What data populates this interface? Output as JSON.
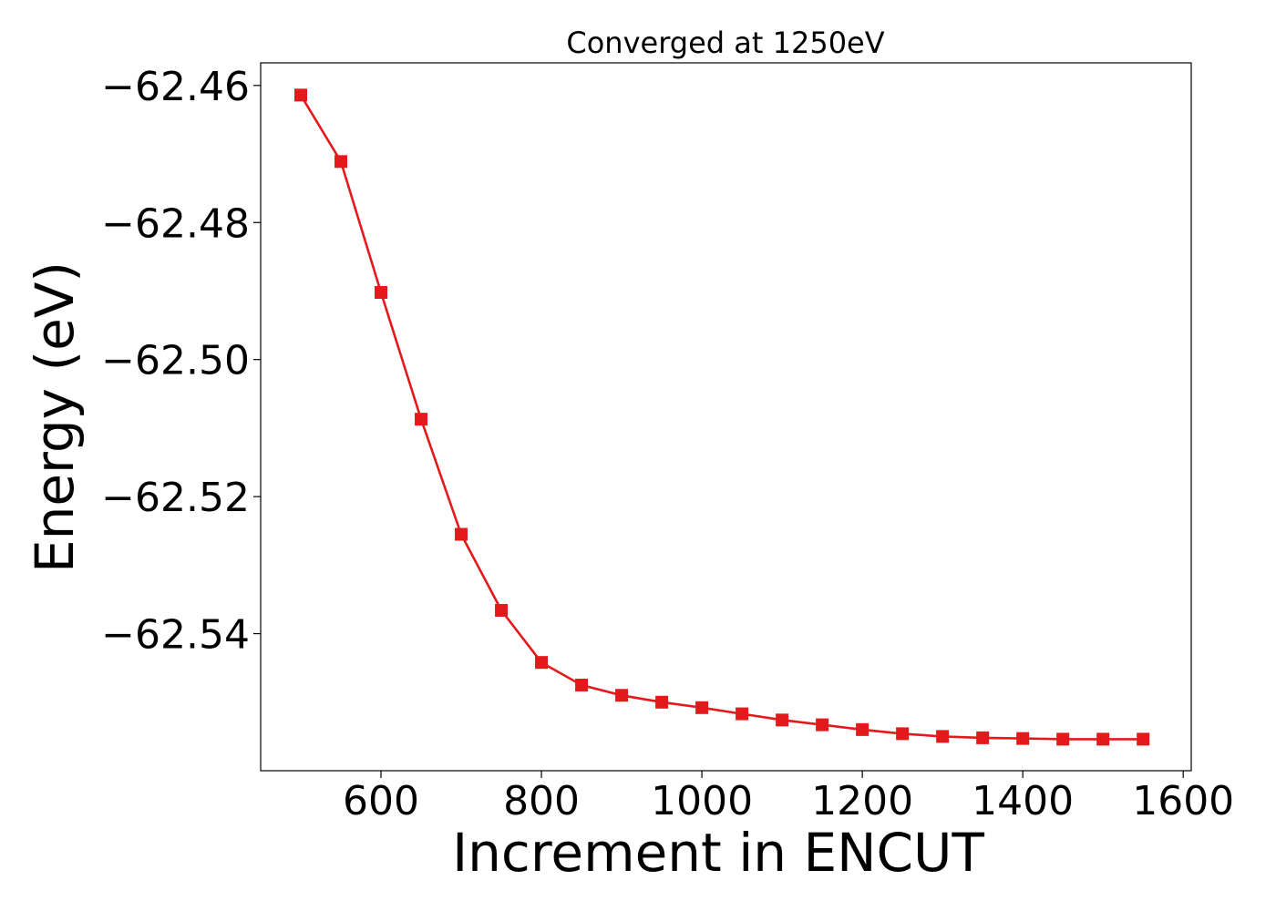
{
  "chart_data": {
    "type": "line",
    "title": "Converged at 1250eV",
    "xlabel": "Increment in ENCUT",
    "ylabel": "Energy (eV)",
    "xlim": [
      450,
      1610
    ],
    "ylim": [
      -62.56,
      -62.4567
    ],
    "xticks": [
      600,
      800,
      1000,
      1200,
      1400,
      1600
    ],
    "xtick_labels": [
      "600",
      "800",
      "1000",
      "1200",
      "1400",
      "1600"
    ],
    "yticks": [
      -62.46,
      -62.48,
      -62.5,
      -62.52,
      -62.54
    ],
    "ytick_labels": [
      "−62.46",
      "−62.48",
      "−62.50",
      "−62.52",
      "−62.54"
    ],
    "grid": false,
    "color": "#e31a1c",
    "marker": "square",
    "x": [
      500,
      550,
      600,
      650,
      700,
      750,
      800,
      850,
      900,
      950,
      1000,
      1050,
      1100,
      1150,
      1200,
      1250,
      1300,
      1350,
      1400,
      1450,
      1500,
      1550
    ],
    "y": [
      -62.4614,
      -62.4711,
      -62.4902,
      -62.5087,
      -62.5255,
      -62.5366,
      -62.5442,
      -62.5475,
      -62.549,
      -62.55,
      -62.5508,
      -62.5517,
      -62.5526,
      -62.5533,
      -62.554,
      -62.5546,
      -62.555,
      -62.5552,
      -62.5553,
      -62.5554,
      -62.5554,
      -62.5554
    ]
  }
}
